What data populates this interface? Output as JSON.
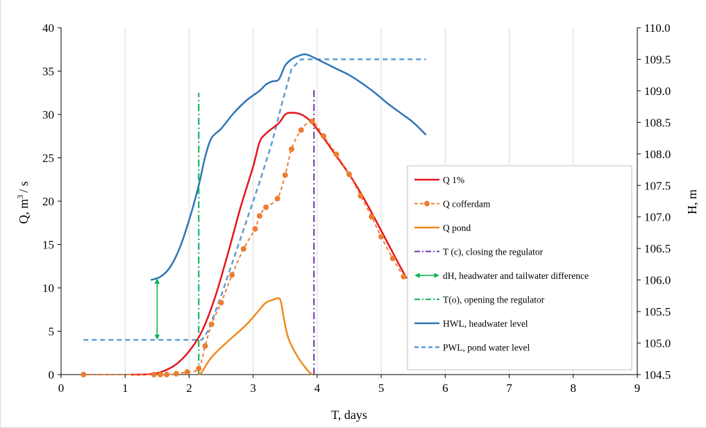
{
  "chart_data": {
    "type": "line",
    "xlabel": "T, days",
    "ylabel_prefix": "Q, m",
    "ylabel_sup": "3",
    "ylabel_suffix": "/ s",
    "y2label": "H, m",
    "xlim": [
      0,
      9
    ],
    "ylim": [
      0,
      40
    ],
    "y2lim": [
      104.5,
      110.0
    ],
    "grid": "vertical",
    "legend_position": "right",
    "x_ticks": [
      "0",
      "1",
      "2",
      "3",
      "4",
      "5",
      "6",
      "7",
      "8",
      "9"
    ],
    "y_ticks": [
      "0",
      "5",
      "10",
      "15",
      "20",
      "25",
      "30",
      "35",
      "40"
    ],
    "y2_ticks": [
      "104.5",
      "105.0",
      "105.5",
      "106.0",
      "106.5",
      "107.0",
      "107.5",
      "108.0",
      "108.5",
      "109.0",
      "109.5",
      "110.0"
    ],
    "series": [
      {
        "name": "Q 1%",
        "axis": "left",
        "color": "#e8141b",
        "style": "solid",
        "x": [
          1.1,
          1.4,
          1.6,
          1.8,
          2.0,
          2.2,
          2.4,
          2.6,
          2.8,
          3.0,
          3.1,
          3.2,
          3.4,
          3.5,
          3.6,
          3.75,
          3.9,
          4.1,
          4.3,
          4.5,
          4.7,
          4.9,
          5.1,
          5.3,
          5.4
        ],
        "y": [
          0,
          0.05,
          0.4,
          1.2,
          2.7,
          5.0,
          8.8,
          13.8,
          19.2,
          24.0,
          26.8,
          27.8,
          29.0,
          30.0,
          30.2,
          30.0,
          29.2,
          27.3,
          25.2,
          23.1,
          20.7,
          18.0,
          15.2,
          12.4,
          11.1
        ]
      },
      {
        "name": "Q cofferdam",
        "axis": "left",
        "color": "#ed7d31",
        "style": "dashed-markers",
        "x": [
          0.35,
          1.45,
          1.55,
          1.65,
          1.8,
          1.97,
          2.15,
          2.25,
          2.35,
          2.5,
          2.67,
          2.85,
          3.03,
          3.1,
          3.2,
          3.38,
          3.5,
          3.6,
          3.75,
          3.92,
          4.1,
          4.3,
          4.5,
          4.68,
          4.85,
          5.0,
          5.18,
          5.35
        ],
        "y": [
          0,
          0,
          0,
          0,
          0.1,
          0.3,
          0.7,
          3.3,
          5.8,
          8.3,
          11.5,
          14.5,
          16.8,
          18.3,
          19.3,
          20.3,
          23.0,
          26.0,
          28.2,
          29.2,
          27.5,
          25.4,
          23.1,
          20.6,
          18.2,
          15.9,
          13.4,
          11.3
        ]
      },
      {
        "name": "Q pond",
        "axis": "left",
        "color": "#f08a1d",
        "style": "solid",
        "x": [
          2.15,
          2.2,
          2.35,
          2.6,
          2.9,
          3.1,
          3.2,
          3.3,
          3.38,
          3.43,
          3.48,
          3.55,
          3.7,
          3.85,
          3.92
        ],
        "y": [
          0,
          0.3,
          2.0,
          3.8,
          5.8,
          7.5,
          8.3,
          8.6,
          8.8,
          8.5,
          6.5,
          4.2,
          2.0,
          0.5,
          0
        ]
      },
      {
        "name": "T (c), closing the regulator",
        "axis": "left",
        "color": "#7030a0",
        "style": "dash-dot",
        "x": [
          3.95,
          3.95
        ],
        "y": [
          0,
          33
        ]
      },
      {
        "name": "dH, headwater and tailwater difference",
        "axis": "left",
        "color": "#00b050",
        "style": "double-arrow",
        "x": [
          1.5,
          1.5
        ],
        "y": [
          4.0,
          11.1
        ]
      },
      {
        "name": "T(o), opening the regulator",
        "axis": "left",
        "color": "#00b050",
        "style": "dash-dot",
        "x": [
          2.15,
          2.15
        ],
        "y": [
          0,
          32.5
        ]
      },
      {
        "name": "HWL, headwater level",
        "axis": "right",
        "color": "#2e75b6",
        "style": "solid",
        "x": [
          1.4,
          1.55,
          1.7,
          1.85,
          2.0,
          2.15,
          2.25,
          2.35,
          2.5,
          2.7,
          2.9,
          3.1,
          3.2,
          3.3,
          3.4,
          3.5,
          3.6,
          3.7,
          3.8,
          3.9,
          4.1,
          4.3,
          4.5,
          4.7,
          4.9,
          5.1,
          5.3,
          5.5,
          5.7
        ],
        "y": [
          106.0,
          106.05,
          106.2,
          106.5,
          106.95,
          107.5,
          107.95,
          108.25,
          108.4,
          108.65,
          108.85,
          109.0,
          109.1,
          109.15,
          109.18,
          109.4,
          109.5,
          109.55,
          109.58,
          109.55,
          109.45,
          109.35,
          109.25,
          109.12,
          108.97,
          108.8,
          108.65,
          108.5,
          108.3
        ]
      },
      {
        "name": "PWL, pond water level",
        "axis": "right",
        "color": "#5b9bd5",
        "style": "dashed",
        "x": [
          0.35,
          2.2,
          2.3,
          2.5,
          2.7,
          2.9,
          3.1,
          3.3,
          3.45,
          3.6,
          3.75,
          4.0,
          5.0,
          5.7
        ],
        "y": [
          105.05,
          105.05,
          105.2,
          105.75,
          106.35,
          106.95,
          107.55,
          108.2,
          108.8,
          109.35,
          109.5,
          109.5,
          109.5,
          109.5
        ]
      }
    ]
  }
}
